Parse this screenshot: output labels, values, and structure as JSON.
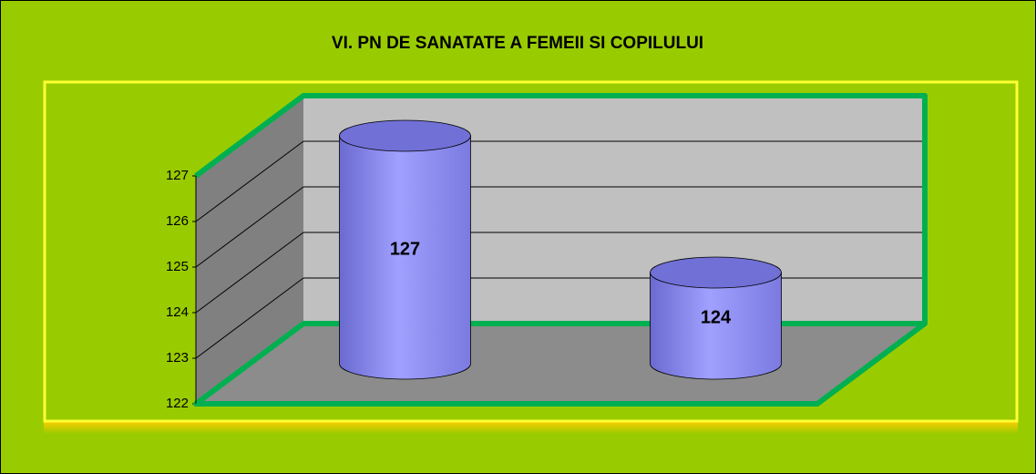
{
  "chart_data": {
    "type": "bar3d",
    "title": "VI. PN DE SANATATE A FEMEII SI COPILULUI",
    "categories": [
      null,
      null
    ],
    "values": [
      127,
      124
    ],
    "color": "#9999ff",
    "ylim": [
      122,
      127
    ],
    "yticks": [
      122,
      123,
      124,
      125,
      126,
      127
    ],
    "grid": true
  }
}
